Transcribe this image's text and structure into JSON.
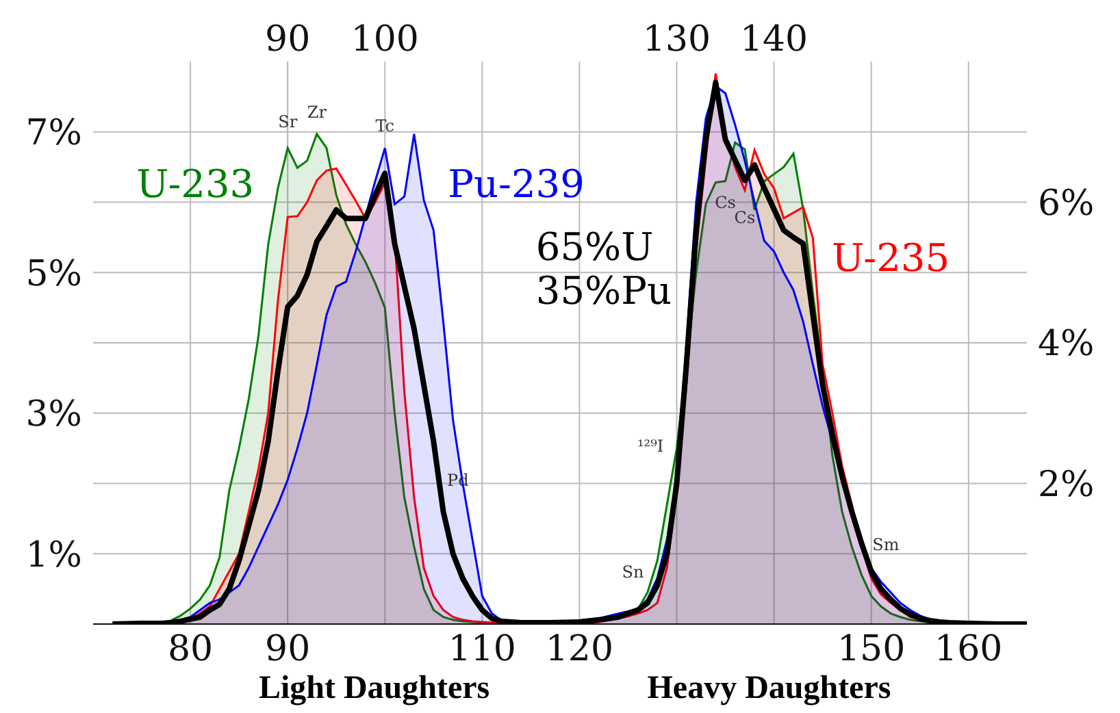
{
  "chart_data": {
    "type": "area",
    "x": [
      72,
      75,
      77,
      78,
      79,
      80,
      81,
      82,
      83,
      84,
      85,
      86,
      87,
      88,
      89,
      90,
      91,
      92,
      93,
      94,
      95,
      96,
      97,
      98,
      99,
      100,
      101,
      102,
      103,
      104,
      105,
      106,
      107,
      108,
      109,
      110,
      111,
      112,
      114,
      117,
      120,
      122,
      124,
      125,
      126,
      127,
      128,
      129,
      130,
      131,
      132,
      133,
      134,
      135,
      136,
      137,
      138,
      139,
      140,
      141,
      142,
      143,
      144,
      145,
      146,
      147,
      148,
      149,
      150,
      151,
      152,
      153,
      154,
      155,
      156,
      157,
      158,
      160,
      163,
      166
    ],
    "series": [
      {
        "name": "U-233",
        "color": "#008000",
        "values": [
          0,
          0.01,
          0.02,
          0.05,
          0.12,
          0.22,
          0.35,
          0.55,
          0.95,
          1.9,
          2.5,
          3.2,
          4.1,
          5.4,
          6.2,
          6.77,
          6.49,
          6.59,
          6.97,
          6.77,
          6.1,
          5.69,
          5.4,
          5.15,
          4.85,
          4.5,
          3.0,
          1.8,
          1.1,
          0.5,
          0.2,
          0.1,
          0.06,
          0.04,
          0.03,
          0.02,
          0.02,
          0.01,
          0.01,
          0.01,
          0.02,
          0.04,
          0.1,
          0.15,
          0.21,
          0.45,
          0.9,
          1.7,
          2.5,
          3.7,
          5.0,
          5.98,
          6.28,
          6.3,
          6.85,
          6.75,
          5.89,
          6.3,
          6.4,
          6.5,
          6.69,
          5.9,
          4.7,
          3.6,
          2.4,
          1.6,
          1.1,
          0.7,
          0.4,
          0.25,
          0.15,
          0.1,
          0.06,
          0.04,
          0.02,
          0.01,
          0.01,
          0,
          0,
          0
        ]
      },
      {
        "name": "U-235",
        "color": "#ff0000",
        "values": [
          0,
          0.01,
          0.01,
          0.02,
          0.04,
          0.07,
          0.15,
          0.25,
          0.5,
          0.75,
          1.0,
          1.6,
          2.2,
          3.0,
          4.6,
          5.79,
          5.8,
          6.0,
          6.31,
          6.45,
          6.48,
          6.25,
          6.02,
          5.77,
          6.0,
          6.28,
          5.5,
          3.3,
          1.8,
          0.8,
          0.4,
          0.2,
          0.1,
          0.06,
          0.04,
          0.03,
          0.02,
          0.02,
          0.01,
          0.01,
          0.01,
          0.03,
          0.08,
          0.11,
          0.15,
          0.2,
          0.3,
          0.8,
          1.9,
          3.4,
          5.3,
          6.64,
          7.83,
          6.97,
          6.5,
          6.17,
          6.74,
          6.4,
          6.2,
          5.77,
          5.85,
          5.93,
          5.49,
          3.69,
          3.0,
          2.25,
          1.7,
          1.1,
          0.65,
          0.42,
          0.3,
          0.2,
          0.1,
          0.07,
          0.04,
          0.03,
          0.02,
          0.01,
          0,
          0
        ]
      },
      {
        "name": "Pu-239",
        "color": "#0000ff",
        "values": [
          0,
          0.01,
          0.02,
          0.03,
          0.06,
          0.1,
          0.2,
          0.3,
          0.35,
          0.45,
          0.55,
          0.8,
          1.1,
          1.4,
          1.7,
          2.05,
          2.5,
          3.0,
          3.69,
          4.4,
          4.8,
          4.87,
          5.3,
          5.8,
          6.3,
          6.77,
          5.97,
          6.08,
          6.97,
          6.03,
          5.6,
          4.3,
          2.9,
          2.0,
          1.2,
          0.4,
          0.15,
          0.05,
          0.03,
          0.03,
          0.05,
          0.08,
          0.15,
          0.18,
          0.22,
          0.35,
          0.65,
          1.2,
          2.1,
          4.0,
          6.0,
          7.2,
          7.65,
          7.55,
          7.1,
          6.59,
          6.0,
          5.45,
          5.3,
          5.0,
          4.75,
          4.3,
          3.69,
          3.1,
          2.6,
          2.1,
          1.6,
          1.15,
          0.8,
          0.6,
          0.45,
          0.3,
          0.2,
          0.12,
          0.07,
          0.05,
          0.03,
          0.01,
          0,
          0
        ]
      },
      {
        "name": "65%U 35%Pu",
        "color": "#000000",
        "type": "line",
        "values": [
          0,
          0.01,
          0.01,
          0.02,
          0.04,
          0.07,
          0.1,
          0.2,
          0.28,
          0.5,
          0.9,
          1.4,
          1.9,
          2.6,
          3.6,
          4.51,
          4.67,
          4.97,
          5.44,
          5.66,
          5.89,
          5.77,
          5.77,
          5.77,
          6.1,
          6.41,
          5.41,
          4.8,
          4.2,
          3.4,
          2.6,
          1.6,
          1.0,
          0.65,
          0.4,
          0.2,
          0.08,
          0.04,
          0.02,
          0.02,
          0.03,
          0.06,
          0.1,
          0.15,
          0.2,
          0.3,
          0.55,
          1.0,
          2.0,
          3.7,
          5.6,
          6.9,
          7.7,
          6.89,
          6.6,
          6.31,
          6.53,
          6.2,
          5.9,
          5.6,
          5.5,
          5.41,
          4.4,
          3.4,
          2.7,
          2.1,
          1.6,
          1.15,
          0.75,
          0.5,
          0.35,
          0.22,
          0.14,
          0.08,
          0.05,
          0.03,
          0.02,
          0.01,
          0,
          0
        ]
      }
    ],
    "xlim": [
      70,
      166
    ],
    "xticks": [
      80,
      90,
      110,
      120,
      150,
      160
    ],
    "x2lim": [
      70,
      166
    ],
    "x2ticks": [
      90,
      100,
      130,
      140
    ],
    "ylim": [
      0,
      8
    ],
    "yticks": [
      {
        "value": 1,
        "label": "1%"
      },
      {
        "value": 3,
        "label": "3%"
      },
      {
        "value": 5,
        "label": "5%"
      },
      {
        "value": 7,
        "label": "7%"
      }
    ],
    "y2lim": [
      0,
      8
    ],
    "y2ticks": [
      {
        "value": 2,
        "label": "2%"
      },
      {
        "value": 4,
        "label": "4%"
      },
      {
        "value": 6,
        "label": "6%"
      }
    ],
    "grid": true,
    "annotations": [
      "Sr",
      "Zr",
      "Tc",
      "Pd",
      "¹²⁹I",
      "Cs",
      "Cs",
      "Sn",
      "Sm",
      "Light Daughters",
      "Heavy Daughters"
    ]
  }
}
